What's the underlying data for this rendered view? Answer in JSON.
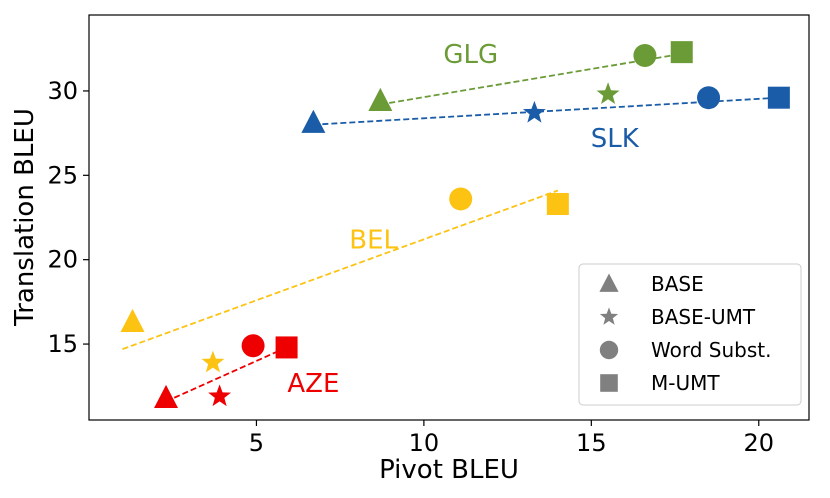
{
  "chart_data": {
    "type": "scatter",
    "xlabel": "Pivot BLEU",
    "ylabel": "Translation BLEU",
    "xlim": [
      0,
      21.5
    ],
    "ylim": [
      10.5,
      34.5
    ],
    "xticks": [
      5,
      10,
      15,
      20
    ],
    "yticks": [
      15,
      20,
      25,
      30
    ],
    "grid": false,
    "legend_position": "bottom-right",
    "legend": [
      {
        "method": "BASE",
        "marker": "triangle"
      },
      {
        "method": "BASE-UMT",
        "marker": "star"
      },
      {
        "method": "Word Subst.",
        "marker": "circle"
      },
      {
        "method": "M-UMT",
        "marker": "square"
      }
    ],
    "series": [
      {
        "name": "GLG",
        "color": "#6b9b37",
        "label_at": [
          11.4,
          32.2
        ],
        "points": [
          {
            "method": "BASE",
            "x": 8.7,
            "y": 29.4
          },
          {
            "method": "BASE-UMT",
            "x": 15.5,
            "y": 29.8
          },
          {
            "method": "Word Subst.",
            "x": 16.6,
            "y": 32.1
          },
          {
            "method": "M-UMT",
            "x": 17.7,
            "y": 32.3
          }
        ],
        "trend": [
          [
            8.7,
            29.2
          ],
          [
            17.7,
            32.2
          ]
        ]
      },
      {
        "name": "SLK",
        "color": "#1a5ca8",
        "label_at": [
          15.7,
          27.2
        ],
        "points": [
          {
            "method": "BASE",
            "x": 6.7,
            "y": 28.1
          },
          {
            "method": "BASE-UMT",
            "x": 13.3,
            "y": 28.7
          },
          {
            "method": "Word Subst.",
            "x": 18.5,
            "y": 29.6
          },
          {
            "method": "M-UMT",
            "x": 20.6,
            "y": 29.6
          }
        ],
        "trend": [
          [
            6.7,
            28.0
          ],
          [
            20.6,
            29.6
          ]
        ]
      },
      {
        "name": "BEL",
        "color": "#fcc313",
        "label_at": [
          8.5,
          21.2
        ],
        "points": [
          {
            "method": "BASE",
            "x": 1.3,
            "y": 16.3
          },
          {
            "method": "BASE-UMT",
            "x": 3.7,
            "y": 13.9
          },
          {
            "method": "Word Subst.",
            "x": 11.1,
            "y": 23.6
          },
          {
            "method": "M-UMT",
            "x": 14.0,
            "y": 23.3
          }
        ],
        "trend": [
          [
            1.0,
            14.7
          ],
          [
            14.0,
            24.1
          ]
        ]
      },
      {
        "name": "AZE",
        "color": "#ee0000",
        "label_at": [
          6.7,
          12.7
        ],
        "points": [
          {
            "method": "BASE",
            "x": 2.3,
            "y": 11.8
          },
          {
            "method": "BASE-UMT",
            "x": 3.9,
            "y": 11.9
          },
          {
            "method": "Word Subst.",
            "x": 4.9,
            "y": 14.9
          },
          {
            "method": "M-UMT",
            "x": 5.9,
            "y": 14.8
          }
        ],
        "trend": [
          [
            2.3,
            11.6
          ],
          [
            5.9,
            14.8
          ]
        ]
      }
    ]
  }
}
